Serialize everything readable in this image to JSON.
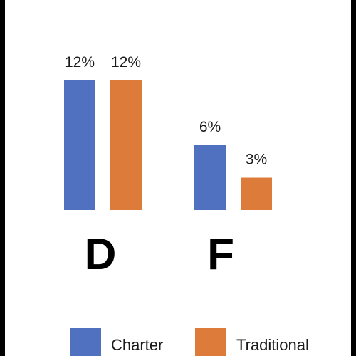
{
  "chart_data": {
    "type": "bar",
    "title": "",
    "categories": [
      "D",
      "F"
    ],
    "series": [
      {
        "name": "Charter",
        "values": [
          12,
          6
        ],
        "color": "#4f71c0"
      },
      {
        "name": "Traditional",
        "values": [
          12,
          3
        ],
        "color": "#dd7b3a"
      }
    ],
    "data_labels": [
      [
        "12%",
        "6%"
      ],
      [
        "12%",
        "3%"
      ]
    ],
    "value_unit": "%",
    "ylim": [
      0,
      12
    ],
    "grid": false,
    "legend_position": "bottom"
  }
}
